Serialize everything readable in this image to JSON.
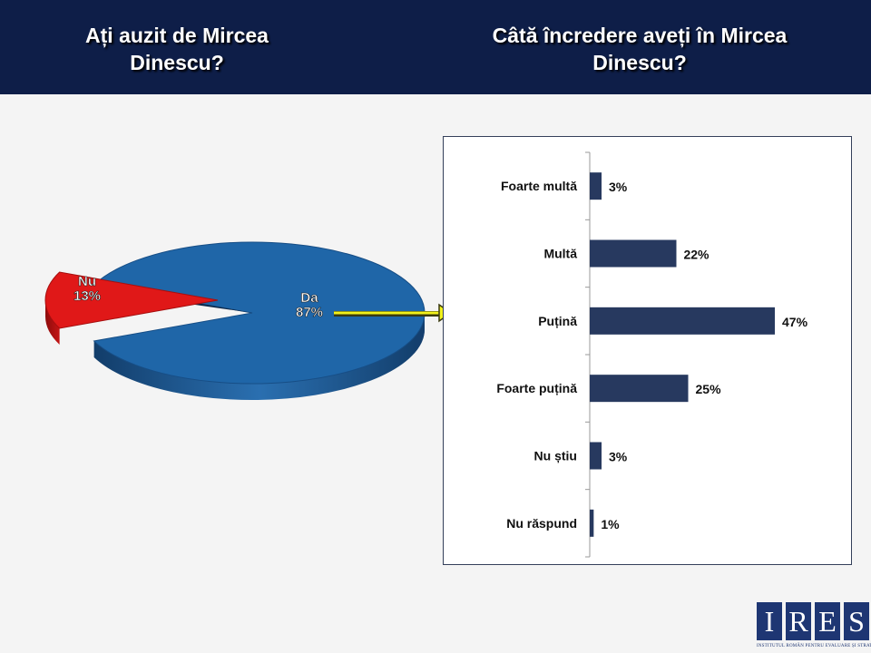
{
  "header": {
    "left_title": "Ați auzit de Mircea Dinescu?",
    "right_title": "Câtă încredere aveți în Mircea Dinescu?"
  },
  "chart_data": [
    {
      "type": "pie",
      "title": "Ați auzit de Mircea Dinescu?",
      "categories": [
        "Da",
        "Nu"
      ],
      "values": [
        87,
        13
      ],
      "colors": [
        "#1f66a8",
        "#e01818"
      ],
      "labels": [
        "Da 87%",
        "Nu 13%"
      ]
    },
    {
      "type": "bar",
      "orientation": "horizontal",
      "title": "Câtă încredere aveți în Mircea Dinescu?",
      "categories": [
        "Foarte multă",
        "Multă",
        "Puțină",
        "Foarte puțină",
        "Nu știu",
        "Nu răspund"
      ],
      "values": [
        3,
        22,
        47,
        25,
        3,
        1
      ],
      "value_labels": [
        "3%",
        "22%",
        "47%",
        "25%",
        "3%",
        "1%"
      ],
      "color": "#27395f",
      "xlim": [
        0,
        50
      ],
      "grid": false
    }
  ],
  "logo": {
    "letters": [
      "I",
      "R",
      "E",
      "S"
    ],
    "subtitle": "INSTITUTUL ROMÂN PENTRU EVALUARE ȘI STRATEGIE"
  }
}
